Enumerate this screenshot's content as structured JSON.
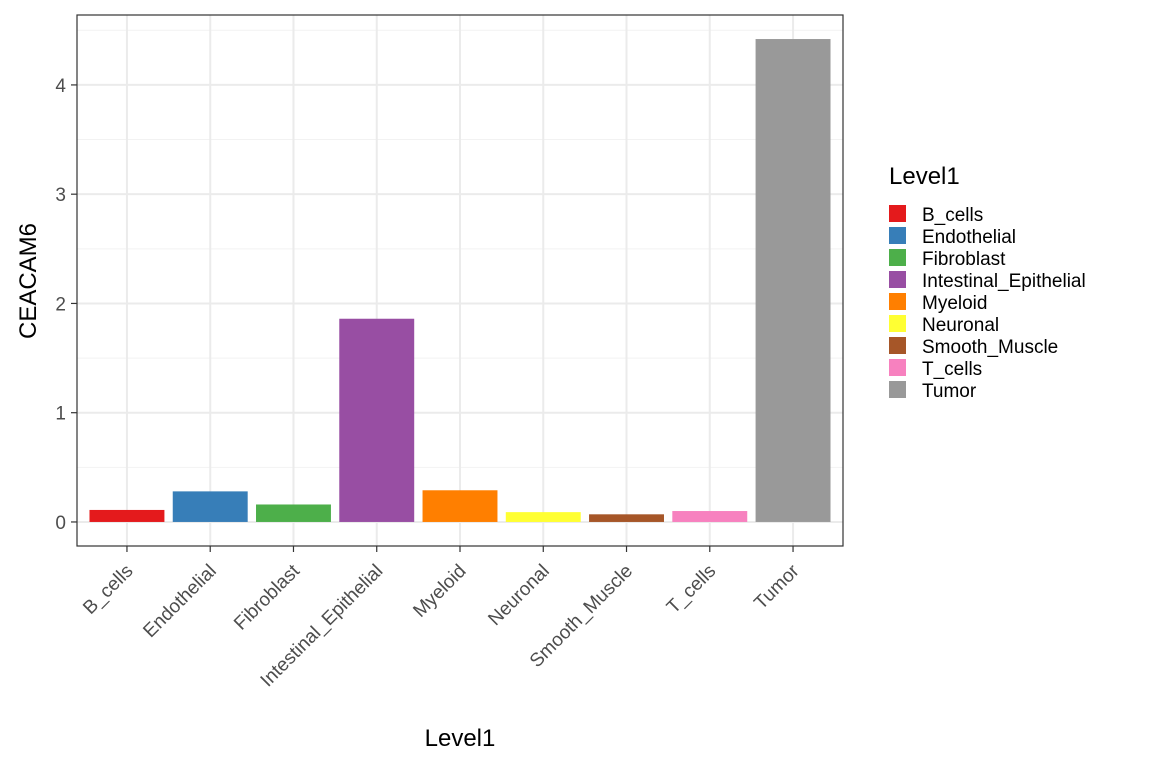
{
  "chart_data": {
    "type": "bar",
    "title": "",
    "xlabel": "Level1",
    "ylabel": "CEACAM6",
    "categories": [
      "B_cells",
      "Endothelial",
      "Fibroblast",
      "Intestinal_Epithelial",
      "Myeloid",
      "Neuronal",
      "Smooth_Muscle",
      "T_cells",
      "Tumor"
    ],
    "values": [
      0.11,
      0.28,
      0.16,
      1.86,
      0.29,
      0.09,
      0.07,
      0.1,
      4.42
    ],
    "colors": [
      "#E41A1C",
      "#377EB8",
      "#4DAF4A",
      "#984EA3",
      "#FF7F00",
      "#FFFF33",
      "#A65628",
      "#F781BF",
      "#999999"
    ],
    "yticks": [
      0,
      1,
      2,
      3,
      4
    ],
    "ytick_labels": [
      "0",
      "1",
      "2",
      "3",
      "4"
    ],
    "ylim": [
      -0.22,
      4.64
    ],
    "grid": true,
    "legend": {
      "title": "Level1",
      "position": "right",
      "entries": [
        "B_cells",
        "Endothelial",
        "Fibroblast",
        "Intestinal_Epithelial",
        "Myeloid",
        "Neuronal",
        "Smooth_Muscle",
        "T_cells",
        "Tumor"
      ]
    }
  }
}
